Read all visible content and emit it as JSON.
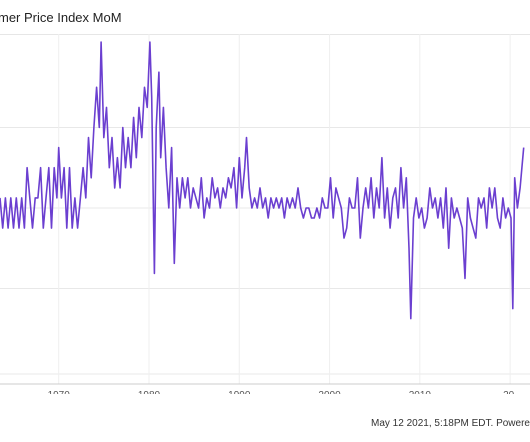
{
  "chart_data": {
    "type": "line",
    "title": "mer Price Index MoM",
    "xlabel": "",
    "ylabel": "",
    "x_ticks": [
      "1970",
      "1980",
      "1990",
      "2000",
      "2010",
      "20"
    ],
    "xlim": [
      1963.5,
      2022.2
    ],
    "ylim": [
      -1.55,
      1.85
    ],
    "grid": true,
    "color": "#6b3fd0",
    "series": [
      {
        "values": [
          [
            1963.5,
            0.3
          ],
          [
            1963.8,
            0.0
          ],
          [
            1964.1,
            0.3
          ],
          [
            1964.4,
            0.0
          ],
          [
            1964.7,
            0.3
          ],
          [
            1965.0,
            0.0
          ],
          [
            1965.3,
            0.3
          ],
          [
            1965.6,
            0.0
          ],
          [
            1965.9,
            0.3
          ],
          [
            1966.2,
            0.0
          ],
          [
            1966.5,
            0.6
          ],
          [
            1966.8,
            0.3
          ],
          [
            1967.1,
            0.0
          ],
          [
            1967.4,
            0.3
          ],
          [
            1967.7,
            0.3
          ],
          [
            1968.0,
            0.6
          ],
          [
            1968.3,
            0.0
          ],
          [
            1968.6,
            0.3
          ],
          [
            1968.9,
            0.6
          ],
          [
            1969.2,
            0.0
          ],
          [
            1969.5,
            0.6
          ],
          [
            1969.8,
            0.3
          ],
          [
            1970.0,
            0.8
          ],
          [
            1970.3,
            0.3
          ],
          [
            1970.6,
            0.6
          ],
          [
            1970.9,
            0.0
          ],
          [
            1971.2,
            0.6
          ],
          [
            1971.5,
            0.0
          ],
          [
            1971.8,
            0.3
          ],
          [
            1972.1,
            0.0
          ],
          [
            1972.4,
            0.3
          ],
          [
            1972.7,
            0.6
          ],
          [
            1973.0,
            0.3
          ],
          [
            1973.3,
            0.9
          ],
          [
            1973.6,
            0.5
          ],
          [
            1973.9,
            1.0
          ],
          [
            1974.2,
            1.4
          ],
          [
            1974.5,
            1.0
          ],
          [
            1974.7,
            1.85
          ],
          [
            1975.0,
            0.9
          ],
          [
            1975.3,
            1.2
          ],
          [
            1975.6,
            0.6
          ],
          [
            1975.9,
            0.9
          ],
          [
            1976.2,
            0.4
          ],
          [
            1976.5,
            0.7
          ],
          [
            1976.8,
            0.4
          ],
          [
            1977.1,
            1.0
          ],
          [
            1977.4,
            0.6
          ],
          [
            1977.7,
            0.9
          ],
          [
            1978.0,
            0.6
          ],
          [
            1978.3,
            1.1
          ],
          [
            1978.6,
            0.7
          ],
          [
            1978.9,
            1.2
          ],
          [
            1979.2,
            0.9
          ],
          [
            1979.5,
            1.4
          ],
          [
            1979.8,
            1.2
          ],
          [
            1980.1,
            1.85
          ],
          [
            1980.3,
            1.3
          ],
          [
            1980.6,
            -0.45
          ],
          [
            1980.8,
            1.0
          ],
          [
            1981.1,
            1.55
          ],
          [
            1981.3,
            0.7
          ],
          [
            1981.6,
            1.2
          ],
          [
            1981.9,
            0.6
          ],
          [
            1982.2,
            0.2
          ],
          [
            1982.5,
            0.8
          ],
          [
            1982.8,
            -0.35
          ],
          [
            1983.1,
            0.5
          ],
          [
            1983.4,
            0.2
          ],
          [
            1983.7,
            0.5
          ],
          [
            1984.0,
            0.3
          ],
          [
            1984.3,
            0.5
          ],
          [
            1984.6,
            0.2
          ],
          [
            1984.9,
            0.4
          ],
          [
            1985.2,
            0.3
          ],
          [
            1985.5,
            0.2
          ],
          [
            1985.8,
            0.5
          ],
          [
            1986.1,
            0.1
          ],
          [
            1986.4,
            0.3
          ],
          [
            1986.7,
            0.2
          ],
          [
            1987.0,
            0.5
          ],
          [
            1987.3,
            0.3
          ],
          [
            1987.6,
            0.4
          ],
          [
            1987.9,
            0.2
          ],
          [
            1988.2,
            0.4
          ],
          [
            1988.5,
            0.3
          ],
          [
            1988.8,
            0.5
          ],
          [
            1989.1,
            0.4
          ],
          [
            1989.4,
            0.6
          ],
          [
            1989.7,
            0.2
          ],
          [
            1990.0,
            0.7
          ],
          [
            1990.3,
            0.3
          ],
          [
            1990.6,
            0.6
          ],
          [
            1990.8,
            0.9
          ],
          [
            1991.1,
            0.4
          ],
          [
            1991.4,
            0.2
          ],
          [
            1991.7,
            0.3
          ],
          [
            1992.0,
            0.2
          ],
          [
            1992.3,
            0.4
          ],
          [
            1992.6,
            0.2
          ],
          [
            1992.9,
            0.3
          ],
          [
            1993.2,
            0.1
          ],
          [
            1993.5,
            0.3
          ],
          [
            1993.8,
            0.2
          ],
          [
            1994.1,
            0.3
          ],
          [
            1994.4,
            0.2
          ],
          [
            1994.7,
            0.3
          ],
          [
            1995.0,
            0.1
          ],
          [
            1995.3,
            0.3
          ],
          [
            1995.6,
            0.2
          ],
          [
            1995.9,
            0.3
          ],
          [
            1996.2,
            0.2
          ],
          [
            1996.5,
            0.4
          ],
          [
            1996.8,
            0.2
          ],
          [
            1997.1,
            0.1
          ],
          [
            1997.4,
            0.2
          ],
          [
            1997.7,
            0.2
          ],
          [
            1998.0,
            0.1
          ],
          [
            1998.3,
            0.1
          ],
          [
            1998.6,
            0.2
          ],
          [
            1998.9,
            0.1
          ],
          [
            1999.2,
            0.3
          ],
          [
            1999.5,
            0.2
          ],
          [
            1999.8,
            0.2
          ],
          [
            2000.1,
            0.5
          ],
          [
            2000.4,
            0.1
          ],
          [
            2000.7,
            0.4
          ],
          [
            2001.0,
            0.3
          ],
          [
            2001.3,
            0.2
          ],
          [
            2001.6,
            -0.1
          ],
          [
            2001.9,
            0.0
          ],
          [
            2002.2,
            0.3
          ],
          [
            2002.5,
            0.2
          ],
          [
            2002.8,
            0.2
          ],
          [
            2003.1,
            0.5
          ],
          [
            2003.4,
            -0.1
          ],
          [
            2003.7,
            0.2
          ],
          [
            2004.0,
            0.4
          ],
          [
            2004.3,
            0.2
          ],
          [
            2004.6,
            0.5
          ],
          [
            2004.9,
            0.1
          ],
          [
            2005.2,
            0.4
          ],
          [
            2005.5,
            0.2
          ],
          [
            2005.8,
            0.7
          ],
          [
            2006.1,
            0.1
          ],
          [
            2006.4,
            0.4
          ],
          [
            2006.7,
            0.0
          ],
          [
            2007.0,
            0.3
          ],
          [
            2007.3,
            0.4
          ],
          [
            2007.6,
            0.1
          ],
          [
            2007.9,
            0.6
          ],
          [
            2008.2,
            0.2
          ],
          [
            2008.5,
            0.5
          ],
          [
            2008.8,
            -0.2
          ],
          [
            2009.0,
            -0.9
          ],
          [
            2009.3,
            0.1
          ],
          [
            2009.6,
            0.3
          ],
          [
            2009.9,
            0.1
          ],
          [
            2010.2,
            0.2
          ],
          [
            2010.5,
            0.0
          ],
          [
            2010.8,
            0.1
          ],
          [
            2011.1,
            0.4
          ],
          [
            2011.4,
            0.2
          ],
          [
            2011.7,
            0.3
          ],
          [
            2012.0,
            0.1
          ],
          [
            2012.3,
            0.3
          ],
          [
            2012.6,
            0.0
          ],
          [
            2012.9,
            0.4
          ],
          [
            2013.2,
            -0.2
          ],
          [
            2013.5,
            0.3
          ],
          [
            2013.8,
            0.1
          ],
          [
            2014.1,
            0.2
          ],
          [
            2014.4,
            0.1
          ],
          [
            2014.7,
            0.0
          ],
          [
            2015.0,
            -0.5
          ],
          [
            2015.3,
            0.3
          ],
          [
            2015.6,
            0.1
          ],
          [
            2015.9,
            0.0
          ],
          [
            2016.2,
            -0.1
          ],
          [
            2016.5,
            0.3
          ],
          [
            2016.8,
            0.2
          ],
          [
            2017.1,
            0.3
          ],
          [
            2017.4,
            0.0
          ],
          [
            2017.7,
            0.4
          ],
          [
            2018.0,
            0.2
          ],
          [
            2018.3,
            0.4
          ],
          [
            2018.6,
            0.1
          ],
          [
            2018.9,
            0.0
          ],
          [
            2019.2,
            0.3
          ],
          [
            2019.5,
            0.1
          ],
          [
            2019.8,
            0.2
          ],
          [
            2020.1,
            0.1
          ],
          [
            2020.3,
            -0.8
          ],
          [
            2020.5,
            0.5
          ],
          [
            2020.8,
            0.2
          ],
          [
            2021.1,
            0.4
          ],
          [
            2021.3,
            0.6
          ],
          [
            2021.5,
            0.8
          ]
        ]
      }
    ]
  },
  "footer": {
    "timestamp": "May 12 2021, 5:18PM EDT. Powere"
  }
}
